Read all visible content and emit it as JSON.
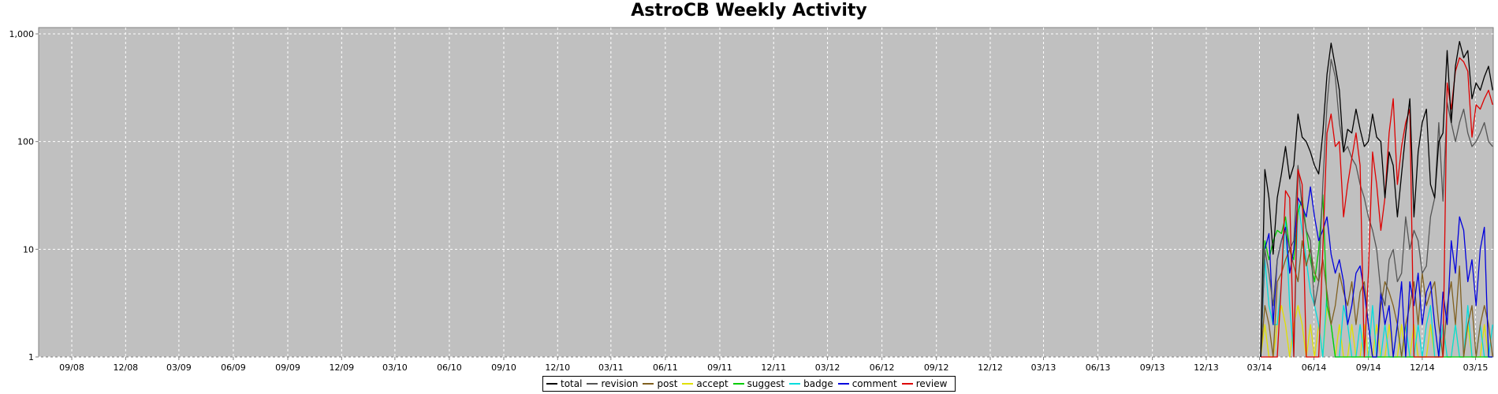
{
  "chart_data": {
    "type": "line",
    "title": "AstroCB Weekly Activity",
    "y_scale": "log",
    "ylim": [
      1,
      1000
    ],
    "y_ticks": [
      "1",
      "10",
      "100",
      "1,000"
    ],
    "grid": true,
    "legend_position": "bottom",
    "x_start": "2008-07-07",
    "x_end": "2015-03-31",
    "x_ticks": [
      "09/08",
      "12/08",
      "03/09",
      "06/09",
      "09/09",
      "12/09",
      "03/10",
      "06/10",
      "09/10",
      "12/10",
      "03/11",
      "06/11",
      "09/11",
      "12/11",
      "03/12",
      "06/12",
      "09/12",
      "12/12",
      "03/13",
      "06/13",
      "09/13",
      "12/13",
      "03/14",
      "06/14",
      "09/14",
      "12/14",
      "03/15"
    ],
    "x": [
      "2014-03-03",
      "2014-03-10",
      "2014-03-17",
      "2014-03-24",
      "2014-03-31",
      "2014-04-07",
      "2014-04-14",
      "2014-04-21",
      "2014-04-28",
      "2014-05-05",
      "2014-05-12",
      "2014-05-19",
      "2014-05-26",
      "2014-06-02",
      "2014-06-09",
      "2014-06-16",
      "2014-06-23",
      "2014-06-30",
      "2014-07-07",
      "2014-07-14",
      "2014-07-21",
      "2014-07-28",
      "2014-08-04",
      "2014-08-11",
      "2014-08-18",
      "2014-08-25",
      "2014-09-01",
      "2014-09-08",
      "2014-09-15",
      "2014-09-22",
      "2014-09-29",
      "2014-10-06",
      "2014-10-13",
      "2014-10-20",
      "2014-10-27",
      "2014-11-03",
      "2014-11-10",
      "2014-11-17",
      "2014-11-24",
      "2014-12-01",
      "2014-12-08",
      "2014-12-15",
      "2014-12-22",
      "2014-12-29",
      "2015-01-05",
      "2015-01-12",
      "2015-01-19",
      "2015-01-26",
      "2015-02-02",
      "2015-02-09",
      "2015-02-16",
      "2015-02-23",
      "2015-03-02",
      "2015-03-09",
      "2015-03-16",
      "2015-03-23",
      "2015-03-30"
    ],
    "series": [
      {
        "name": "total",
        "color": "#000000",
        "values": [
          1,
          55,
          30,
          9,
          30,
          50,
          90,
          45,
          60,
          180,
          110,
          100,
          80,
          60,
          50,
          120,
          420,
          820,
          500,
          300,
          80,
          130,
          120,
          200,
          130,
          90,
          100,
          180,
          110,
          100,
          30,
          80,
          60,
          20,
          50,
          120,
          250,
          20,
          80,
          150,
          200,
          40,
          30,
          100,
          120,
          700,
          150,
          500,
          850,
          600,
          700,
          250,
          350,
          300,
          400,
          500,
          300
        ]
      },
      {
        "name": "revision",
        "color": "#555555",
        "values": [
          1,
          10,
          6,
          3,
          8,
          12,
          15,
          10,
          12,
          60,
          25,
          15,
          12,
          3,
          5,
          40,
          220,
          580,
          400,
          150,
          80,
          90,
          70,
          60,
          40,
          30,
          20,
          15,
          10,
          4,
          3,
          8,
          10,
          5,
          6,
          20,
          10,
          15,
          12,
          6,
          7,
          20,
          30,
          150,
          28,
          230,
          150,
          100,
          150,
          200,
          120,
          90,
          100,
          120,
          150,
          100,
          90
        ]
      },
      {
        "name": "post",
        "color": "#806020",
        "values": [
          1,
          3,
          2,
          1,
          5,
          6,
          8,
          10,
          7,
          5,
          12,
          7,
          10,
          6,
          5,
          8,
          4,
          2,
          3,
          6,
          4,
          3,
          5,
          2,
          4,
          5,
          2,
          1,
          1,
          3,
          5,
          4,
          3,
          2,
          1,
          2,
          3,
          5,
          2,
          6,
          3,
          4,
          5,
          2,
          1,
          3,
          5,
          2,
          7,
          1,
          2,
          3,
          1,
          2,
          3,
          2,
          1
        ]
      },
      {
        "name": "accept",
        "color": "#e0e000",
        "values": [
          1,
          2,
          1,
          1,
          2,
          3,
          2,
          1,
          2,
          3,
          2,
          1,
          2,
          1,
          2,
          1,
          3,
          2,
          1,
          2,
          1,
          1,
          2,
          1,
          1,
          2,
          1,
          1,
          2,
          1,
          1,
          2,
          1,
          1,
          2,
          1,
          1,
          2,
          1,
          1,
          1,
          2,
          1,
          1,
          2,
          1,
          1,
          2,
          1,
          1,
          2,
          1,
          1,
          1,
          2,
          1,
          1
        ]
      },
      {
        "name": "suggest",
        "color": "#00cc00",
        "values": [
          1,
          12,
          8,
          12,
          15,
          14,
          20,
          10,
          8,
          22,
          30,
          15,
          8,
          5,
          10,
          32,
          3,
          2,
          1,
          1,
          1,
          1,
          1,
          1,
          1,
          1,
          1,
          1,
          1,
          1,
          1,
          1,
          1,
          1,
          1,
          1,
          1,
          1,
          1,
          1,
          1,
          1,
          1,
          1,
          1,
          1,
          1,
          1,
          1,
          1,
          1,
          1,
          1,
          1,
          1,
          1,
          1
        ]
      },
      {
        "name": "badge",
        "color": "#00dddd",
        "values": [
          1,
          8,
          3,
          2,
          2,
          5,
          18,
          3,
          1,
          27,
          15,
          8,
          4,
          3,
          2,
          1,
          4,
          2,
          1,
          1,
          3,
          2,
          1,
          1,
          2,
          1,
          1,
          3,
          1,
          1,
          2,
          1,
          1,
          2,
          1,
          2,
          1,
          1,
          2,
          1,
          2,
          3,
          1,
          1,
          2,
          1,
          1,
          2,
          1,
          1,
          3,
          1,
          1,
          2,
          1,
          1,
          2
        ]
      },
      {
        "name": "comment",
        "color": "#0000dd",
        "values": [
          1,
          10,
          14,
          2,
          8,
          12,
          16,
          6,
          10,
          30,
          25,
          20,
          38,
          20,
          12,
          15,
          20,
          9,
          6,
          8,
          5,
          2,
          3,
          6,
          7,
          4,
          2,
          1,
          1,
          4,
          2,
          3,
          1,
          2,
          5,
          1,
          5,
          3,
          6,
          2,
          4,
          5,
          2,
          1,
          4,
          2,
          12,
          6,
          20,
          15,
          5,
          8,
          3,
          10,
          16,
          1,
          1
        ]
      },
      {
        "name": "review",
        "color": "#dd0000",
        "values": [
          1,
          1,
          1,
          1,
          1,
          5,
          35,
          30,
          1,
          55,
          40,
          1,
          1,
          1,
          1,
          10,
          120,
          180,
          90,
          100,
          20,
          40,
          70,
          120,
          60,
          1,
          6,
          80,
          40,
          15,
          30,
          120,
          250,
          40,
          90,
          150,
          200,
          1,
          1,
          1,
          1,
          1,
          1,
          1,
          1,
          350,
          200,
          450,
          600,
          550,
          450,
          110,
          220,
          200,
          250,
          300,
          220
        ]
      }
    ]
  }
}
